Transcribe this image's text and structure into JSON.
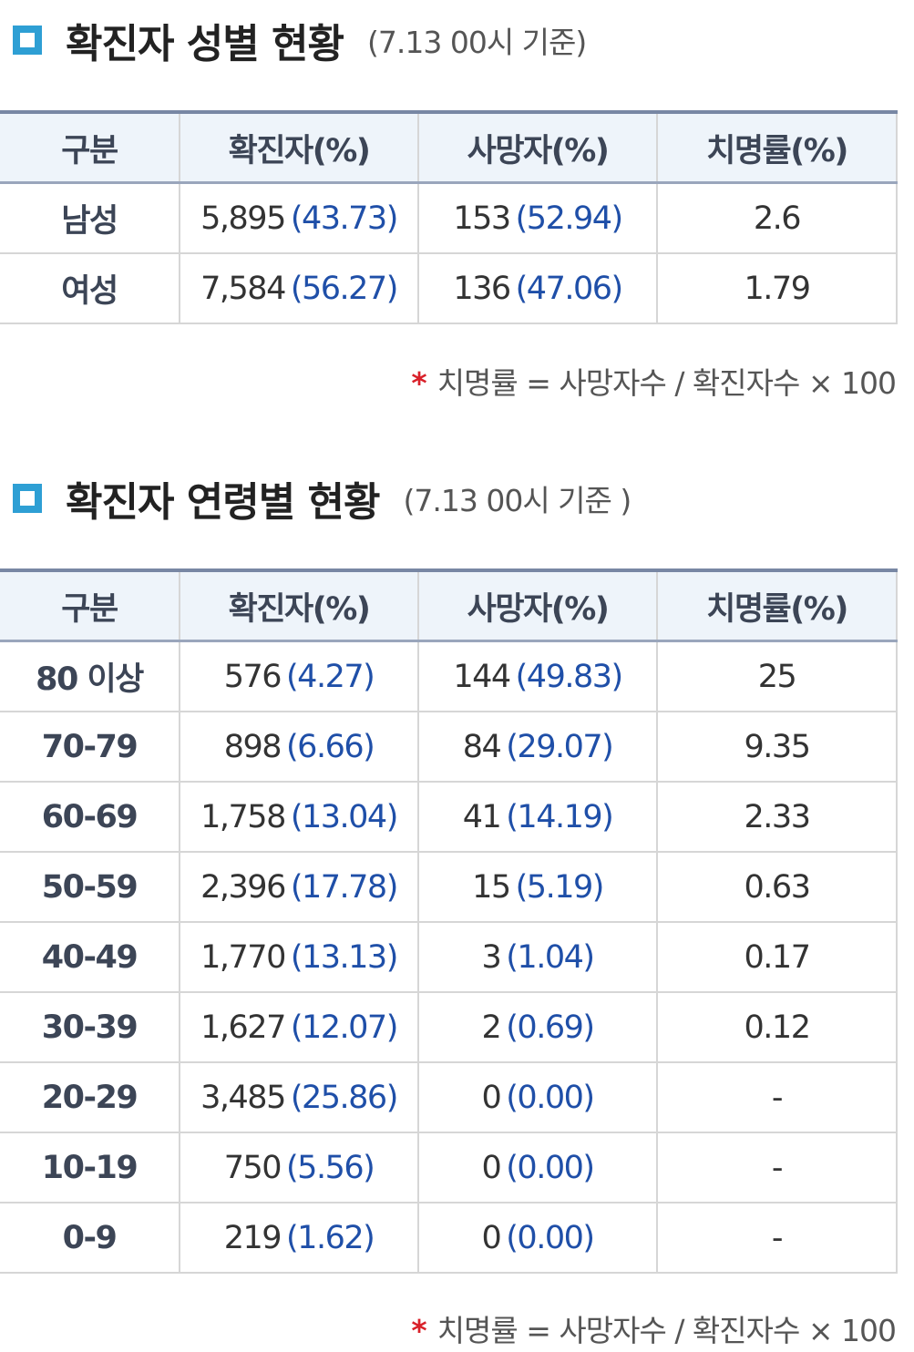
{
  "gender": {
    "title": "확진자 성별 현황",
    "subtitle": "(7.13 00시 기준)",
    "columns": [
      "구분",
      "확진자(%)",
      "사망자(%)",
      "치명률(%)"
    ],
    "rows": [
      {
        "label": "남성",
        "confirmed": "5,895",
        "confirmed_pct": "(43.73)",
        "deaths": "153",
        "deaths_pct": "(52.94)",
        "fatality": "2.6"
      },
      {
        "label": "여성",
        "confirmed": "7,584",
        "confirmed_pct": "(56.27)",
        "deaths": "136",
        "deaths_pct": "(47.06)",
        "fatality": "1.79"
      }
    ],
    "footnote_mark": "*",
    "footnote": "치명률 = 사망자수 / 확진자수 × 100"
  },
  "age": {
    "title": "확진자 연령별 현황",
    "subtitle": "(7.13 00시 기준 )",
    "columns": [
      "구분",
      "확진자(%)",
      "사망자(%)",
      "치명률(%)"
    ],
    "rows": [
      {
        "label": "80 이상",
        "confirmed": "576",
        "confirmed_pct": "(4.27)",
        "deaths": "144",
        "deaths_pct": "(49.83)",
        "fatality": "25"
      },
      {
        "label": "70-79",
        "confirmed": "898",
        "confirmed_pct": "(6.66)",
        "deaths": "84",
        "deaths_pct": "(29.07)",
        "fatality": "9.35"
      },
      {
        "label": "60-69",
        "confirmed": "1,758",
        "confirmed_pct": "(13.04)",
        "deaths": "41",
        "deaths_pct": "(14.19)",
        "fatality": "2.33"
      },
      {
        "label": "50-59",
        "confirmed": "2,396",
        "confirmed_pct": "(17.78)",
        "deaths": "15",
        "deaths_pct": "(5.19)",
        "fatality": "0.63"
      },
      {
        "label": "40-49",
        "confirmed": "1,770",
        "confirmed_pct": "(13.13)",
        "deaths": "3",
        "deaths_pct": "(1.04)",
        "fatality": "0.17"
      },
      {
        "label": "30-39",
        "confirmed": "1,627",
        "confirmed_pct": "(12.07)",
        "deaths": "2",
        "deaths_pct": "(0.69)",
        "fatality": "0.12"
      },
      {
        "label": "20-29",
        "confirmed": "3,485",
        "confirmed_pct": "(25.86)",
        "deaths": "0",
        "deaths_pct": "(0.00)",
        "fatality": "-"
      },
      {
        "label": "10-19",
        "confirmed": "750",
        "confirmed_pct": "(5.56)",
        "deaths": "0",
        "deaths_pct": "(0.00)",
        "fatality": "-"
      },
      {
        "label": "0-9",
        "confirmed": "219",
        "confirmed_pct": "(1.62)",
        "deaths": "0",
        "deaths_pct": "(0.00)",
        "fatality": "-"
      }
    ],
    "footnote_mark": "*",
    "footnote": "치명률 = 사망자수 / 확진자수 × 100"
  },
  "colors": {
    "accent": "#2e9fd4",
    "header_bg": "#eef4fa",
    "header_text": "#3c4556",
    "value_blue": "#1f4fa8",
    "footnote_star": "#d9212a"
  },
  "icons": {
    "section_marker": "square-outline-icon"
  }
}
